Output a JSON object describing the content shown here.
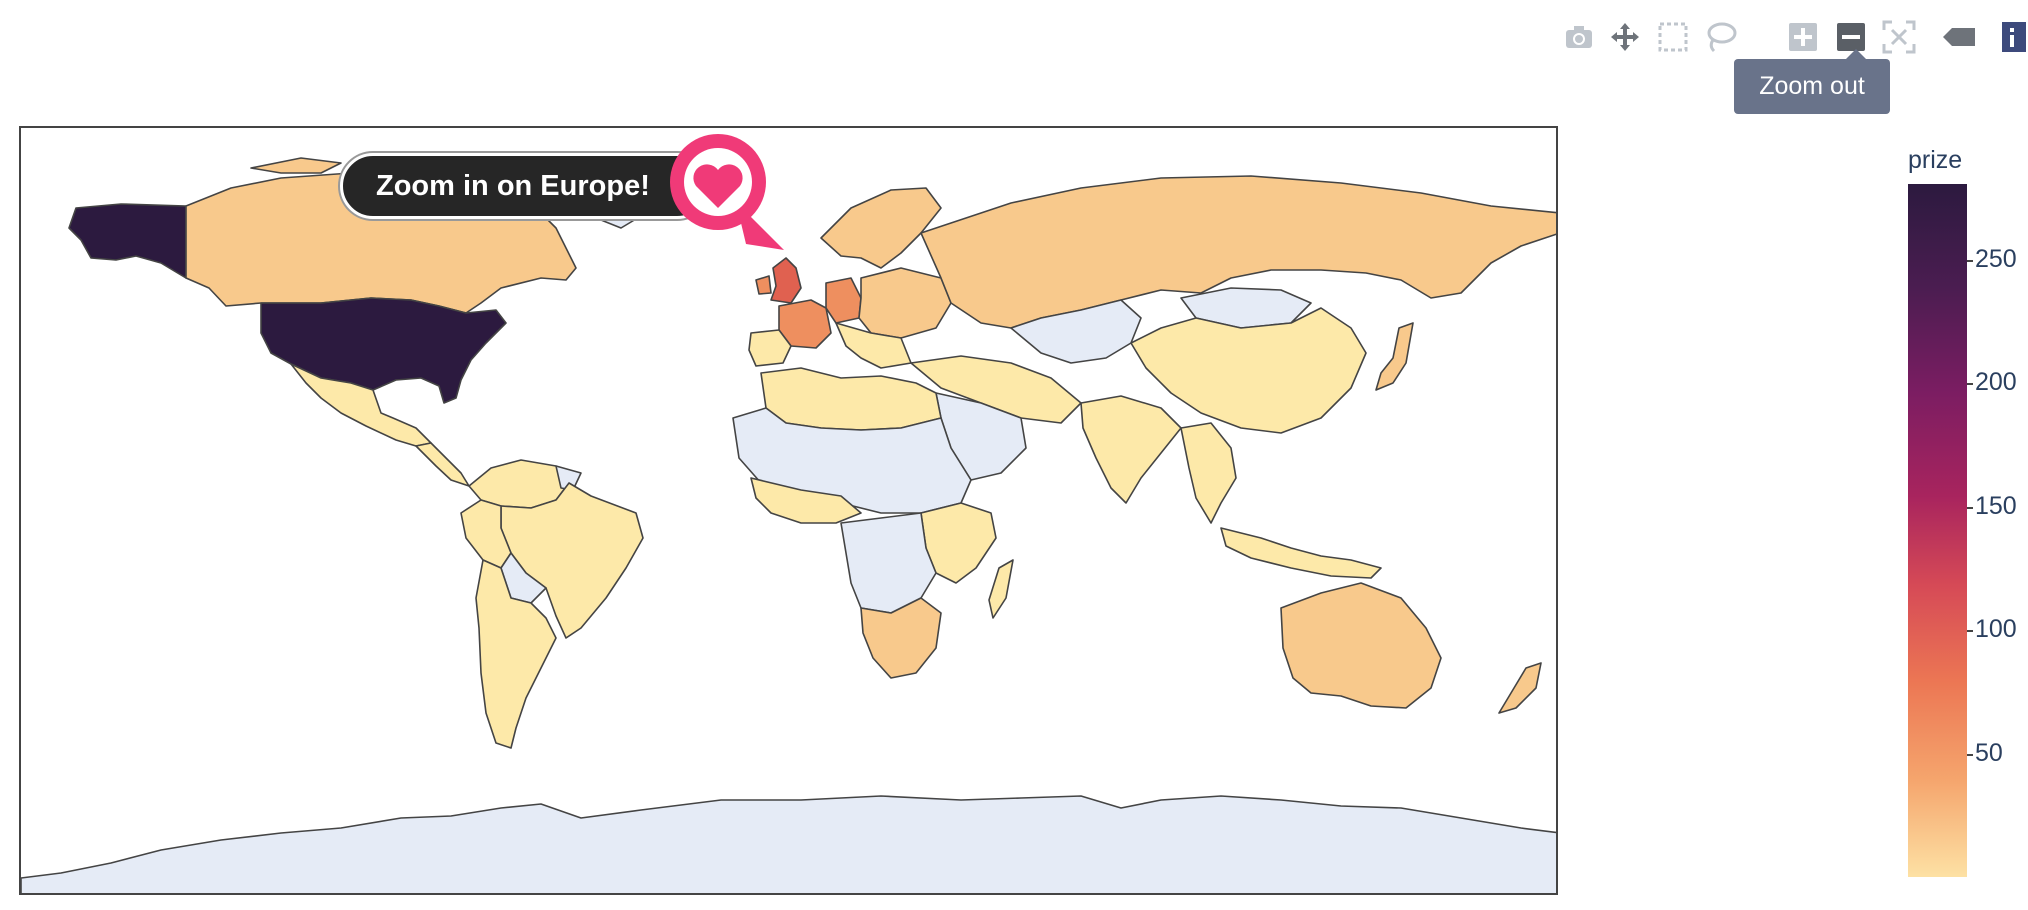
{
  "modebar": {
    "buttons": [
      {
        "name": "camera-icon",
        "label": "Download plot as a png"
      },
      {
        "name": "pan-icon",
        "label": "Pan"
      },
      {
        "name": "box-select-icon",
        "label": "Box Select"
      },
      {
        "name": "lasso-select-icon",
        "label": "Lasso Select"
      },
      {
        "name": "zoom-in-icon",
        "label": "Zoom in"
      },
      {
        "name": "zoom-out-icon",
        "label": "Zoom out"
      },
      {
        "name": "reset-view-icon",
        "label": "Reset"
      },
      {
        "name": "hover-icon",
        "label": "Show closest data on hover"
      }
    ],
    "tooltip": "Zoom out"
  },
  "callout": {
    "text": "Zoom in on Europe!",
    "icon": "heart-icon"
  },
  "colorbar": {
    "title": "prize",
    "ticks": [
      "250",
      "200",
      "150",
      "100",
      "50"
    ],
    "colors": [
      "#fde9a9",
      "#f8c98c",
      "#ee8f5f",
      "#e06150",
      "#2c1a3f"
    ]
  },
  "chart_data": {
    "type": "choropleth",
    "title": "",
    "colorbar_title": "prize",
    "colorbar_range": [
      1,
      281
    ],
    "countries": [
      {
        "name": "United States",
        "prize": 281
      },
      {
        "name": "United Kingdom",
        "prize": 100
      },
      {
        "name": "Germany",
        "prize": 82
      },
      {
        "name": "France",
        "prize": 60
      },
      {
        "name": "Canada",
        "prize": 20
      },
      {
        "name": "Russia",
        "prize": 25
      },
      {
        "name": "Australia",
        "prize": 12
      },
      {
        "name": "Sweden",
        "prize": 30
      },
      {
        "name": "China",
        "prize": 8
      },
      {
        "name": "Japan",
        "prize": 25
      }
    ]
  }
}
